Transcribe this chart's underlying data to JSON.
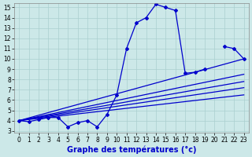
{
  "xlabel": "Graphe des températures (°c)",
  "background_color": "#cce8e8",
  "grid_color": "#aacfcf",
  "line_color": "#0000cc",
  "xlim": [
    -0.5,
    23.5
  ],
  "ylim": [
    2.8,
    15.4
  ],
  "xticks": [
    0,
    1,
    2,
    3,
    4,
    5,
    6,
    7,
    8,
    9,
    10,
    11,
    12,
    13,
    14,
    15,
    16,
    17,
    18,
    19,
    20,
    21,
    22,
    23
  ],
  "yticks": [
    3,
    4,
    5,
    6,
    7,
    8,
    9,
    10,
    11,
    12,
    13,
    14,
    15
  ],
  "main_curve": [
    4.0,
    3.9,
    4.1,
    4.3,
    4.3,
    3.4,
    3.8,
    4.0,
    3.4,
    4.6,
    6.5,
    11.0,
    13.5,
    14.0,
    15.3,
    15.0,
    14.7,
    8.6,
    8.7,
    9.0,
    null,
    11.2,
    11.0,
    10.0
  ],
  "fan_lines": [
    {
      "x_start": 0,
      "y_start": 4.0,
      "x_end": 23,
      "y_end": 10.0
    },
    {
      "x_start": 0,
      "y_start": 4.0,
      "x_end": 23,
      "y_end": 8.5
    },
    {
      "x_start": 0,
      "y_start": 4.0,
      "x_end": 23,
      "y_end": 7.8
    },
    {
      "x_start": 0,
      "y_start": 4.0,
      "x_end": 23,
      "y_end": 7.2
    },
    {
      "x_start": 0,
      "y_start": 4.0,
      "x_end": 23,
      "y_end": 6.5
    }
  ],
  "marker_style": "D",
  "marker_size": 2.0,
  "line_width": 0.9,
  "xlabel_fontsize": 7,
  "tick_fontsize": 5.5
}
